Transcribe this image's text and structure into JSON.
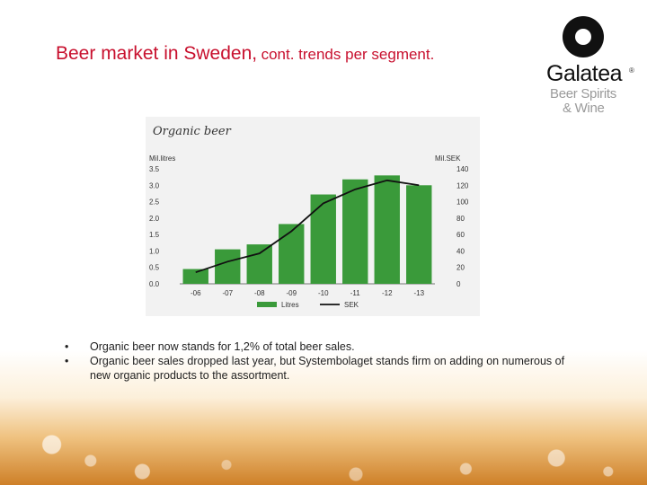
{
  "slide": {
    "title_main": "Beer market in Sweden,",
    "title_sub": "cont. trends per segment."
  },
  "logo": {
    "brand": "Galatea",
    "reg": "®",
    "tagline_line1": "Beer Spirits",
    "tagline_line2": "& Wine"
  },
  "bullets": [
    "Organic beer now stands for 1,2% of total beer sales.",
    "Organic beer sales dropped last year, but Systembolaget stands firm on adding on numerous of new organic products to the assortment."
  ],
  "chart_data": {
    "type": "bar",
    "title": "Organic beer",
    "categories": [
      "-06",
      "-07",
      "-08",
      "-09",
      "-10",
      "-11",
      "-12",
      "-13"
    ],
    "ylabel": "Mil.litres",
    "y2label": "Mil.SEK",
    "ylim": [
      0,
      3.5
    ],
    "y2lim": [
      0,
      140
    ],
    "yticks": [
      "0.0",
      "0.5",
      "1.0",
      "1.5",
      "2.0",
      "2.5",
      "3.0",
      "3.5"
    ],
    "y2ticks": [
      "0",
      "20",
      "40",
      "60",
      "80",
      "100",
      "120",
      "140"
    ],
    "series": [
      {
        "name": "Litres",
        "type": "bar",
        "axis": "left",
        "color": "#3a9a3a",
        "values": [
          0.45,
          1.05,
          1.2,
          1.82,
          2.72,
          3.18,
          3.3,
          3.0
        ]
      },
      {
        "name": "SEK",
        "type": "line",
        "axis": "right",
        "color": "#111111",
        "values": [
          14,
          27,
          37,
          64,
          98,
          115,
          126,
          120
        ]
      }
    ],
    "legend_position": "bottom",
    "grid": false
  }
}
